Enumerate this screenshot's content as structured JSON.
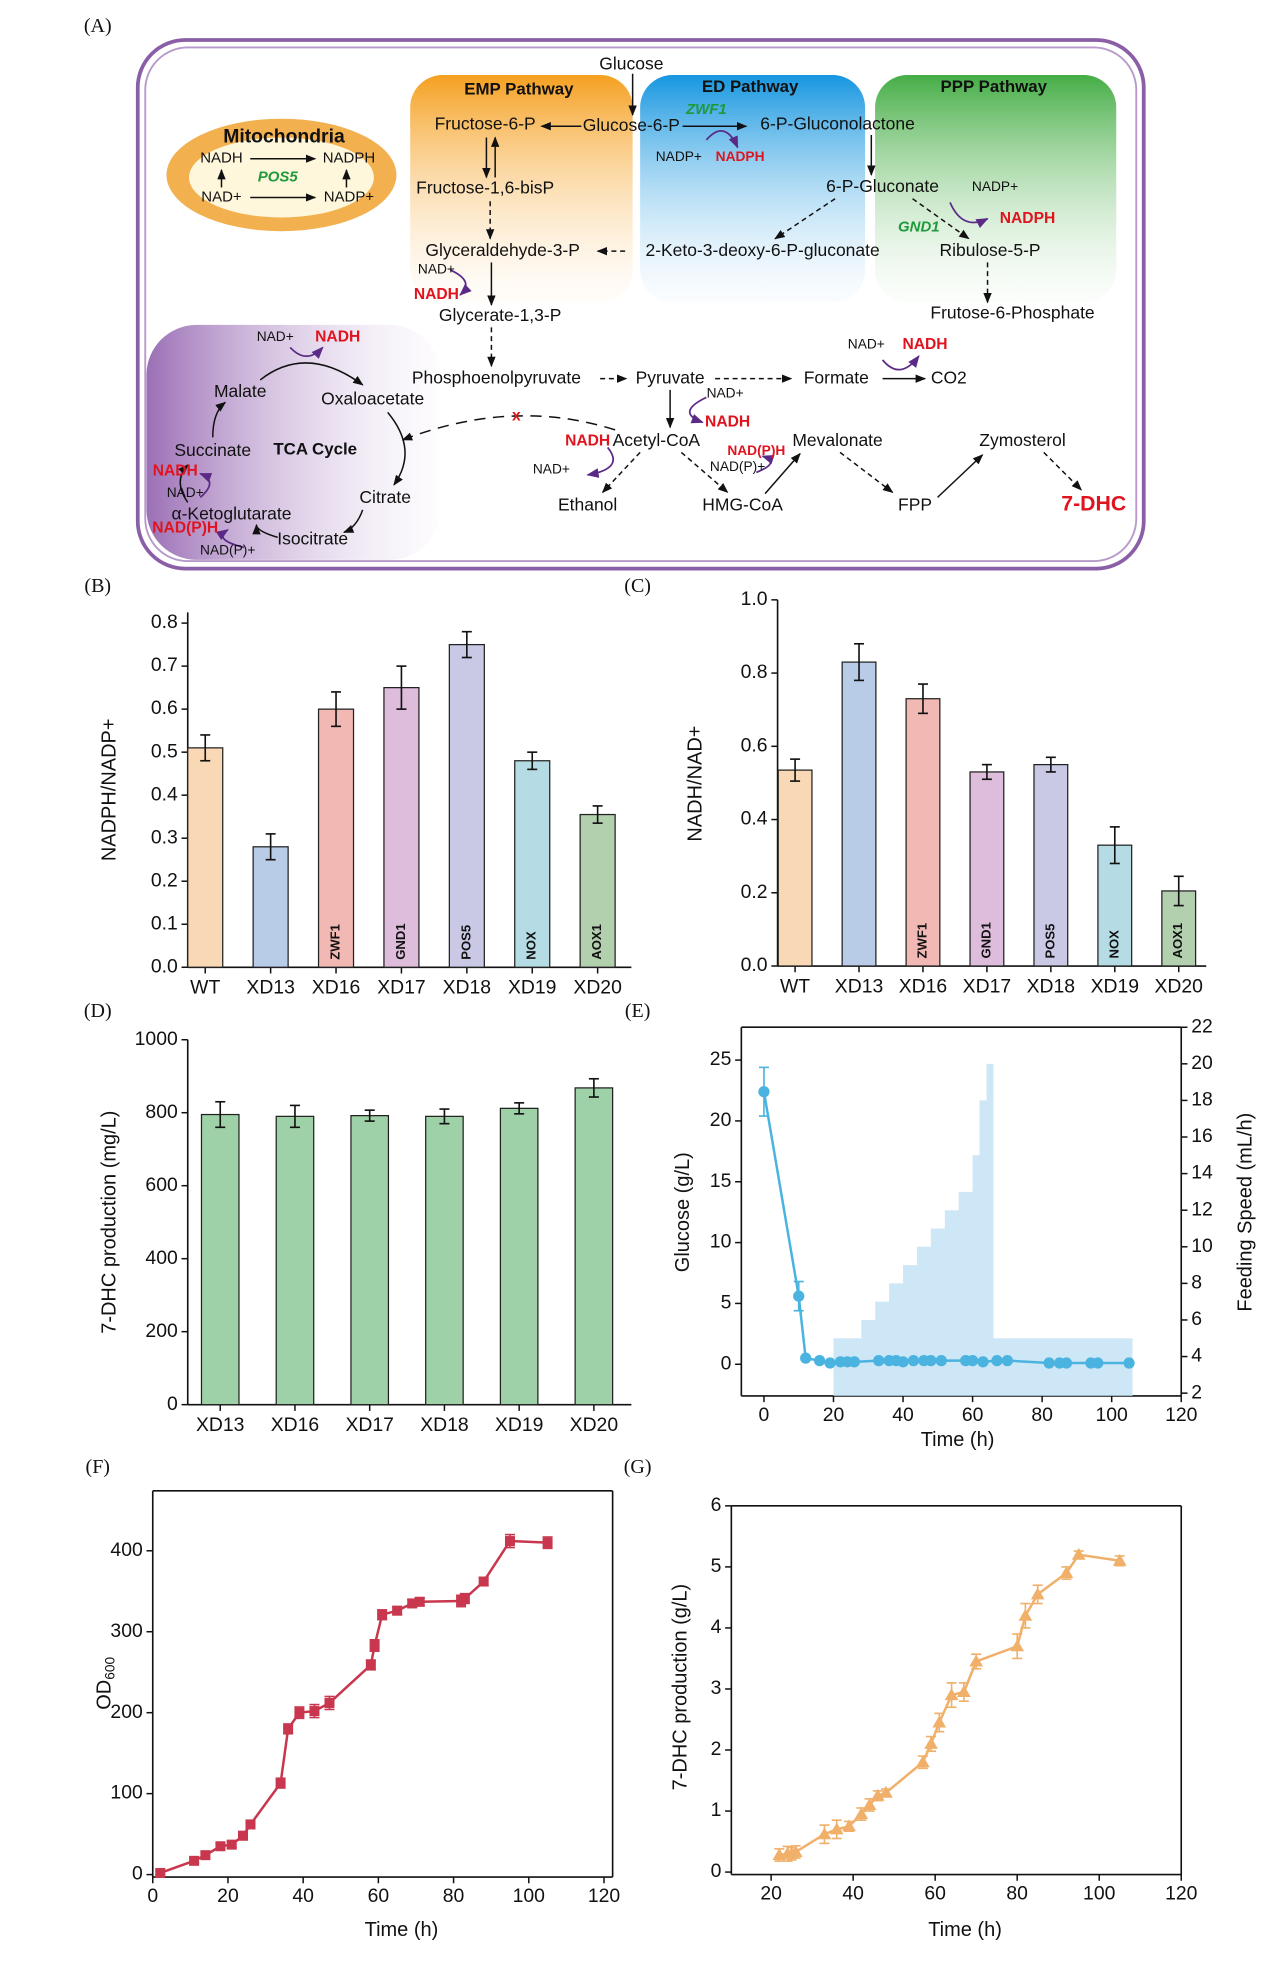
{
  "diagram": {
    "panel": "(A)",
    "labels": [
      "Glucose",
      "EMP Pathway",
      "ED Pathway",
      "PPP Pathway",
      "Mitochondria",
      "NADH",
      "NADPH",
      "POS5",
      "NAD+",
      "NADP+",
      "Fructose-6-P",
      "Glucose-6-P",
      "ZWF1",
      "6-P-Gluconolactone",
      "NADP+",
      "NADPH",
      "Fructose-1,6-bisP",
      "6-P-Gluconate",
      "NADP+",
      "GND1",
      "NADPH",
      "Glyceraldehyde-3-P",
      "2-Keto-3-deoxy-6-P-gluconate",
      "Ribulose-5-P",
      "NAD+",
      "NADH",
      "Glycerate-1,3-P",
      "Frutose-6-Phosphate",
      "NAD+",
      "NADH",
      "NAD+",
      "NADH",
      "Phosphoenolpyruvate",
      "Pyruvate",
      "Formate",
      "CO2",
      "Malate",
      "Oxaloacetate",
      "NAD+",
      "x",
      "NADH",
      "Succinate",
      "TCA Cycle",
      "NADH",
      "Acetyl-CoA",
      "NAD(P)H",
      "Mevalonate",
      "Zymosterol",
      "NADH",
      "NAD+",
      "NAD+",
      "NAD(P)+",
      "α-Ketoglutarate",
      "Citrate",
      "Ethanol",
      "HMG-CoA",
      "FPP",
      "7-DHC",
      "NAD(P)H",
      "Isocitrate",
      "NAD(P)+"
    ]
  },
  "chart_data": [
    {
      "type": "bar",
      "panel": "(B)",
      "y_label": "NADPH/NADP+",
      "categories": [
        "WT",
        "XD13",
        "XD16",
        "XD17",
        "XD18",
        "XD19",
        "XD20"
      ],
      "values": [
        0.51,
        0.28,
        0.6,
        0.65,
        0.75,
        0.48,
        0.355
      ],
      "errors": [
        0.03,
        0.03,
        0.04,
        0.05,
        0.03,
        0.02,
        0.02
      ],
      "bar_labels": [
        null,
        null,
        "ZWF1",
        "GND1",
        "POS5",
        "NOX",
        "AOX1"
      ],
      "colors": [
        "#f9d9b5",
        "#b8cce8",
        "#f2b8b4",
        "#ddbcdc",
        "#c9c9e6",
        "#b5dce5",
        "#b2cfae"
      ],
      "ylim": [
        0,
        0.825
      ],
      "yticks": [
        {
          "value": 0,
          "label": "0.0"
        },
        0.1,
        0.2,
        0.3,
        0.4,
        0.5,
        0.6,
        0.7,
        0.8
      ]
    },
    {
      "type": "bar",
      "panel": "(C)",
      "y_label": "NADH/NAD+",
      "categories": [
        "WT",
        "XD13",
        "XD16",
        "XD17",
        "XD18",
        "XD19",
        "XD20"
      ],
      "values": [
        0.535,
        0.83,
        0.73,
        0.53,
        0.55,
        0.33,
        0.205
      ],
      "errors": [
        0.03,
        0.05,
        0.04,
        0.02,
        0.02,
        0.05,
        0.04
      ],
      "bar_labels": [
        null,
        null,
        "ZWF1",
        "GND1",
        "POS5",
        "NOX",
        "AOX1"
      ],
      "colors": [
        "#f9d9b5",
        "#b8cce8",
        "#f2b8b4",
        "#ddbcdc",
        "#c9c9e6",
        "#b5dce5",
        "#b2cfae"
      ],
      "ylim": [
        0,
        1.0
      ],
      "yticks": [
        {
          "value": 0,
          "label": "0.0"
        },
        0.2,
        0.4,
        0.6,
        0.8,
        {
          "value": 1,
          "label": "1.0"
        }
      ]
    },
    {
      "type": "bar",
      "panel": "(D)",
      "y_label": "7-DHC production (mg/L)",
      "categories": [
        "XD13",
        "XD16",
        "XD17",
        "XD18",
        "XD19",
        "XD20"
      ],
      "values": [
        795,
        790,
        792,
        790,
        812,
        868
      ],
      "errors": [
        35,
        30,
        15,
        20,
        15,
        25
      ],
      "color": "#9fd1a8",
      "ylim": [
        0,
        1000
      ],
      "yticks": [
        0,
        200,
        400,
        600,
        800,
        1000
      ]
    },
    {
      "type": "line",
      "panel": "(E)",
      "x_label": "Time (h)",
      "y_label": "Glucose (g/L)",
      "y2_label": "Feeding Speed (mL/h)",
      "xlim": [
        -6.5,
        120
      ],
      "xticks": [
        0,
        20,
        40,
        60,
        80,
        100,
        120
      ],
      "ylim": [
        -2.6,
        27.7
      ],
      "yticks": [
        0,
        5,
        10,
        15,
        20,
        25
      ],
      "y2lim": [
        1.85,
        22
      ],
      "y2ticks": [
        2,
        4,
        6,
        8,
        10,
        12,
        14,
        16,
        18,
        20,
        22
      ],
      "series": [
        {
          "style": "line",
          "marker": "circle",
          "color": "#4ab3e0",
          "x": [
            0,
            10,
            12,
            16,
            19,
            22,
            24,
            26,
            33,
            36,
            38,
            40,
            43,
            46,
            48,
            51,
            58,
            60,
            63,
            67,
            70,
            82,
            85,
            87,
            94,
            96,
            105
          ],
          "values": [
            22.4,
            5.6,
            0.5,
            0.3,
            0.1,
            0.2,
            0.2,
            0.2,
            0.3,
            0.3,
            0.3,
            0.2,
            0.3,
            0.3,
            0.3,
            0.3,
            0.3,
            0.3,
            0.2,
            0.3,
            0.3,
            0.1,
            0.1,
            0.1,
            0.1,
            0.1,
            0.1
          ],
          "errors": [
            2,
            1.2,
            null,
            null,
            null,
            null,
            null,
            null,
            null,
            null,
            null,
            null,
            null,
            null,
            null,
            null,
            null,
            null,
            null,
            null,
            null,
            null,
            null,
            null,
            null,
            null,
            null
          ]
        },
        {
          "style": "step-area",
          "axis": "y2",
          "color": "#c5e3f5",
          "x": [
            20,
            28,
            32,
            36,
            40,
            44,
            48,
            52,
            56,
            60,
            62,
            64,
            66,
            106
          ],
          "values": [
            5,
            6,
            7,
            8,
            9,
            10,
            11,
            12,
            13,
            15,
            18,
            20,
            5,
            5
          ]
        }
      ]
    },
    {
      "type": "line",
      "panel": "(F)",
      "x_label": "Time (h)",
      "y_label": "OD",
      "y_label_sub": "600",
      "marker": "square",
      "color": "#c8374e",
      "xlim": [
        0,
        122.3
      ],
      "xticks": [
        0,
        20,
        40,
        60,
        80,
        100,
        120
      ],
      "ylim": [
        -3,
        474
      ],
      "yticks": [
        0,
        100,
        200,
        300,
        400
      ],
      "x": [
        2,
        11,
        14,
        18,
        21,
        24,
        26,
        34,
        36,
        39,
        43,
        47,
        58,
        59,
        61,
        65,
        69,
        71,
        82,
        83,
        88,
        95,
        105
      ],
      "values": [
        2,
        17,
        24,
        35,
        37,
        48,
        62,
        113,
        180,
        200,
        202,
        212,
        259,
        283,
        321,
        326,
        335,
        337,
        338,
        341,
        362,
        412,
        410
      ],
      "errors": [
        2,
        3,
        3,
        4,
        4,
        5,
        5,
        6,
        6,
        7,
        8,
        8,
        6,
        7,
        6,
        5,
        5,
        5,
        7,
        6,
        5,
        8,
        7
      ]
    },
    {
      "type": "line",
      "panel": "(G)",
      "x_label": "Time (h)",
      "y_label": "7-DHC production (g/L)",
      "marker": "triangle",
      "color": "#f0b06a",
      "xlim": [
        10.3,
        120
      ],
      "xticks": [
        20,
        40,
        60,
        80,
        100,
        120
      ],
      "ylim": [
        -0.04,
        6
      ],
      "yticks": [
        0,
        1,
        2,
        3,
        4,
        5,
        6
      ],
      "x": [
        22,
        24,
        25,
        26,
        33,
        36,
        39,
        42,
        44,
        46,
        48,
        57,
        59,
        61,
        64,
        67,
        70,
        80,
        82,
        85,
        92,
        95,
        105
      ],
      "values": [
        0.28,
        0.3,
        0.3,
        0.33,
        0.62,
        0.7,
        0.75,
        0.95,
        1.1,
        1.25,
        1.3,
        1.8,
        2.1,
        2.45,
        2.9,
        2.95,
        3.45,
        3.7,
        4.2,
        4.55,
        4.9,
        5.2,
        5.1
      ],
      "errors": [
        0.1,
        0.12,
        0.1,
        0.1,
        0.15,
        0.15,
        0.08,
        0.1,
        0.1,
        0.08,
        0.06,
        0.1,
        0.12,
        0.15,
        0.2,
        0.15,
        0.12,
        0.2,
        0.2,
        0.15,
        0.1,
        0.06,
        0.08
      ]
    }
  ]
}
